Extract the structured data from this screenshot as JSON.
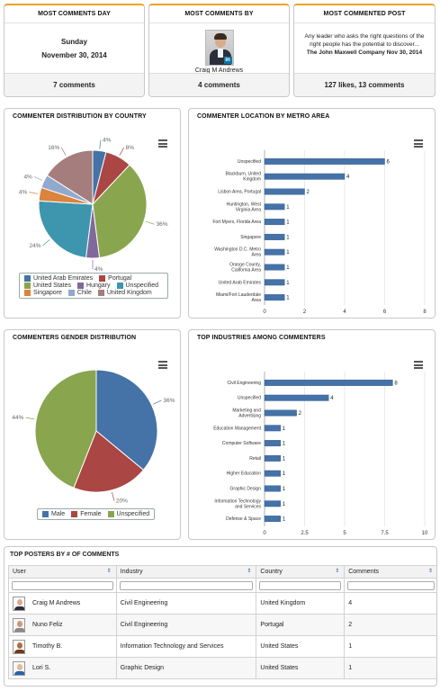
{
  "stats": {
    "day": {
      "title": "MOST COMMENTS DAY",
      "weekday": "Sunday",
      "date": "November 30, 2014",
      "footer": "7 comments"
    },
    "author": {
      "title": "MOST COMMENTS BY",
      "name": "Craig M Andrews",
      "footer": "4 comments",
      "badge": "in"
    },
    "post": {
      "title": "MOST COMMENTED POST",
      "text": "Any leader who asks the right questions of the right people has the potential to discover...",
      "meta": "The John Maxwell Company Nov 30, 2014",
      "footer": "127 likes, 13 comments"
    }
  },
  "country_chart": {
    "title": "COMMENTER DISTRIBUTION BY COUNTRY",
    "chart_data": {
      "type": "pie",
      "slices": [
        {
          "name": "United Arab Emirates",
          "value": 4,
          "label": "4%",
          "color": "#4572a7"
        },
        {
          "name": "Portugal",
          "value": 8,
          "label": "8%",
          "color": "#aa4643"
        },
        {
          "name": "United States",
          "value": 36,
          "label": "36%",
          "color": "#89a54e"
        },
        {
          "name": "Hungary",
          "value": 4,
          "label": "4%",
          "color": "#80699b"
        },
        {
          "name": "Unspecified",
          "value": 24,
          "label": "24%",
          "color": "#3d96ae"
        },
        {
          "name": "Singapore",
          "value": 4,
          "label": "4%",
          "color": "#db843d"
        },
        {
          "name": "Chile",
          "value": 4,
          "label": "4%",
          "color": "#92a8cd"
        },
        {
          "name": "United Kingdom",
          "value": 16,
          "label": "16%",
          "color": "#a47d7c"
        }
      ]
    }
  },
  "metro_chart": {
    "title": "COMMENTER LOCATION BY METRO AREA",
    "chart_data": {
      "type": "bar",
      "orientation": "horizontal",
      "categories": [
        "Unspecified",
        "Blackburn, United Kingdom",
        "Lisbon Area, Portugal",
        "Huntington, West Virginia Area",
        "Fort Myers, Florida Area",
        "Singapore",
        "Washington D.C. Metro Area",
        "Orange County, California Area",
        "United Arab Emirates",
        "Miami/Fort Lauderdale Area"
      ],
      "values": [
        6,
        4,
        2,
        1,
        1,
        1,
        1,
        1,
        1,
        1
      ],
      "xlim": [
        0,
        8
      ],
      "xticks": [
        "0",
        "2",
        "4",
        "6",
        "8"
      ],
      "color": "#4572a7"
    }
  },
  "gender_chart": {
    "title": "COMMENTERS GENDER DISTRIBUTION",
    "chart_data": {
      "type": "pie",
      "slices": [
        {
          "name": "Male",
          "value": 36,
          "label": "36%",
          "color": "#4572a7"
        },
        {
          "name": "Female",
          "value": 20,
          "label": "20%",
          "color": "#aa4643"
        },
        {
          "name": "Unspecified",
          "value": 44,
          "label": "44%",
          "color": "#89a54e"
        }
      ]
    }
  },
  "industry_chart": {
    "title": "TOP INDUSTRIES AMONG COMMENTERS",
    "chart_data": {
      "type": "bar",
      "orientation": "horizontal",
      "categories": [
        "Civil Engineering",
        "Unspecified",
        "Marketing and Advertising",
        "Education Management",
        "Computer Software",
        "Retail",
        "Higher Education",
        "Graphic Design",
        "Information Technology and Services",
        "Defense & Space"
      ],
      "values": [
        8,
        4,
        2,
        1,
        1,
        1,
        1,
        1,
        1,
        1
      ],
      "xlim": [
        0,
        10
      ],
      "xticks": [
        "0",
        "2.5",
        "5",
        "7.5",
        "10"
      ],
      "color": "#4572a7"
    }
  },
  "posters": {
    "title": "TOP POSTERS BY # OF COMMENTS",
    "columns": [
      "User",
      "Industry",
      "Country",
      "Comments"
    ],
    "rows": [
      {
        "user": "Craig M Andrews",
        "industry": "Civil Engineering",
        "country": "United Kingdom",
        "comments": "4",
        "skin": "#d8ab8c",
        "cloth": "#2b2f3a"
      },
      {
        "user": "Nuno Feliz",
        "industry": "Civil Engineering",
        "country": "Portugal",
        "comments": "2",
        "skin": "#c99a7a",
        "cloth": "#8a8a8a"
      },
      {
        "user": "Timothy B.",
        "industry": "Information Technology and Services",
        "country": "United States",
        "comments": "1",
        "skin": "#b06c3c",
        "cloth": "#6b3c1e"
      },
      {
        "user": "Lori S.",
        "industry": "Graphic Design",
        "country": "United States",
        "comments": "1",
        "skin": "#e0b89a",
        "cloth": "#2463b0"
      }
    ]
  }
}
